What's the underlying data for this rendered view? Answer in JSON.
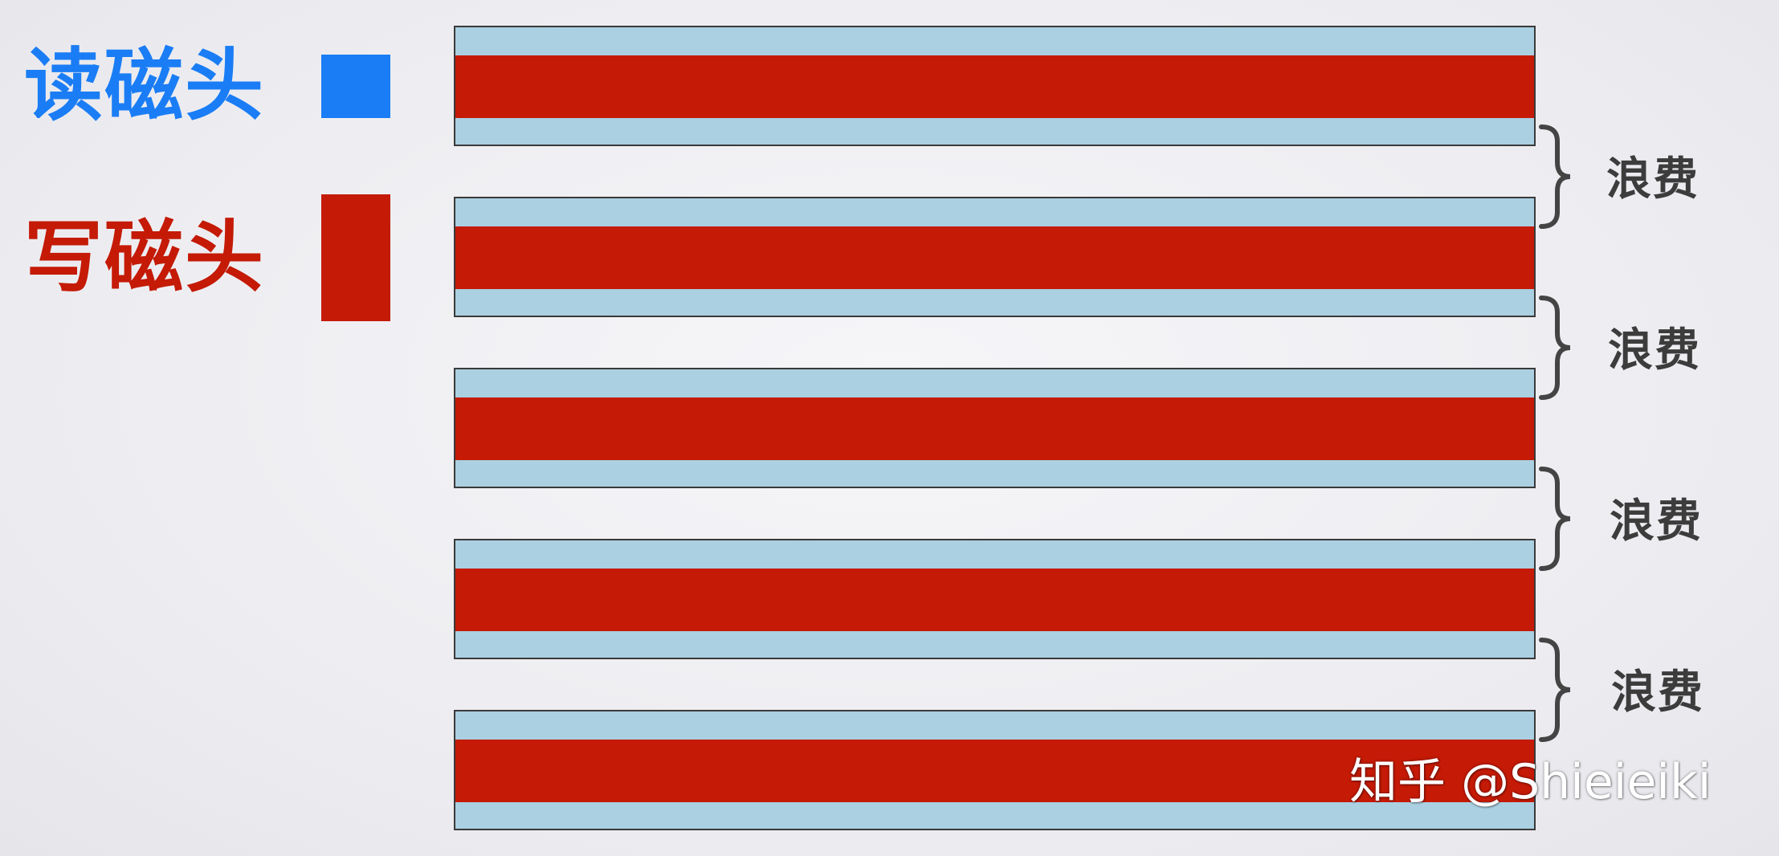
{
  "legend": {
    "read": {
      "label": "读磁头",
      "color": "#1a7df5"
    },
    "write": {
      "label": "写磁头",
      "color": "#c41a06"
    }
  },
  "colors": {
    "track_guard": "#aad0e2",
    "track_write": "#c41a06",
    "track_border": "#3a3a3a",
    "brace": "#444444",
    "waste_text": "#3c3c3c"
  },
  "tracks": [
    {
      "name": "track-1"
    },
    {
      "name": "track-2"
    },
    {
      "name": "track-3"
    },
    {
      "name": "track-4"
    },
    {
      "name": "track-5"
    }
  ],
  "gaps": [
    {
      "label": "浪费",
      "icon": "curly-brace-icon"
    },
    {
      "label": "浪费",
      "icon": "curly-brace-icon"
    },
    {
      "label": "浪费",
      "icon": "curly-brace-icon"
    },
    {
      "label": "浪费",
      "icon": "curly-brace-icon"
    }
  ],
  "watermark": "知乎 @Shieieiki"
}
